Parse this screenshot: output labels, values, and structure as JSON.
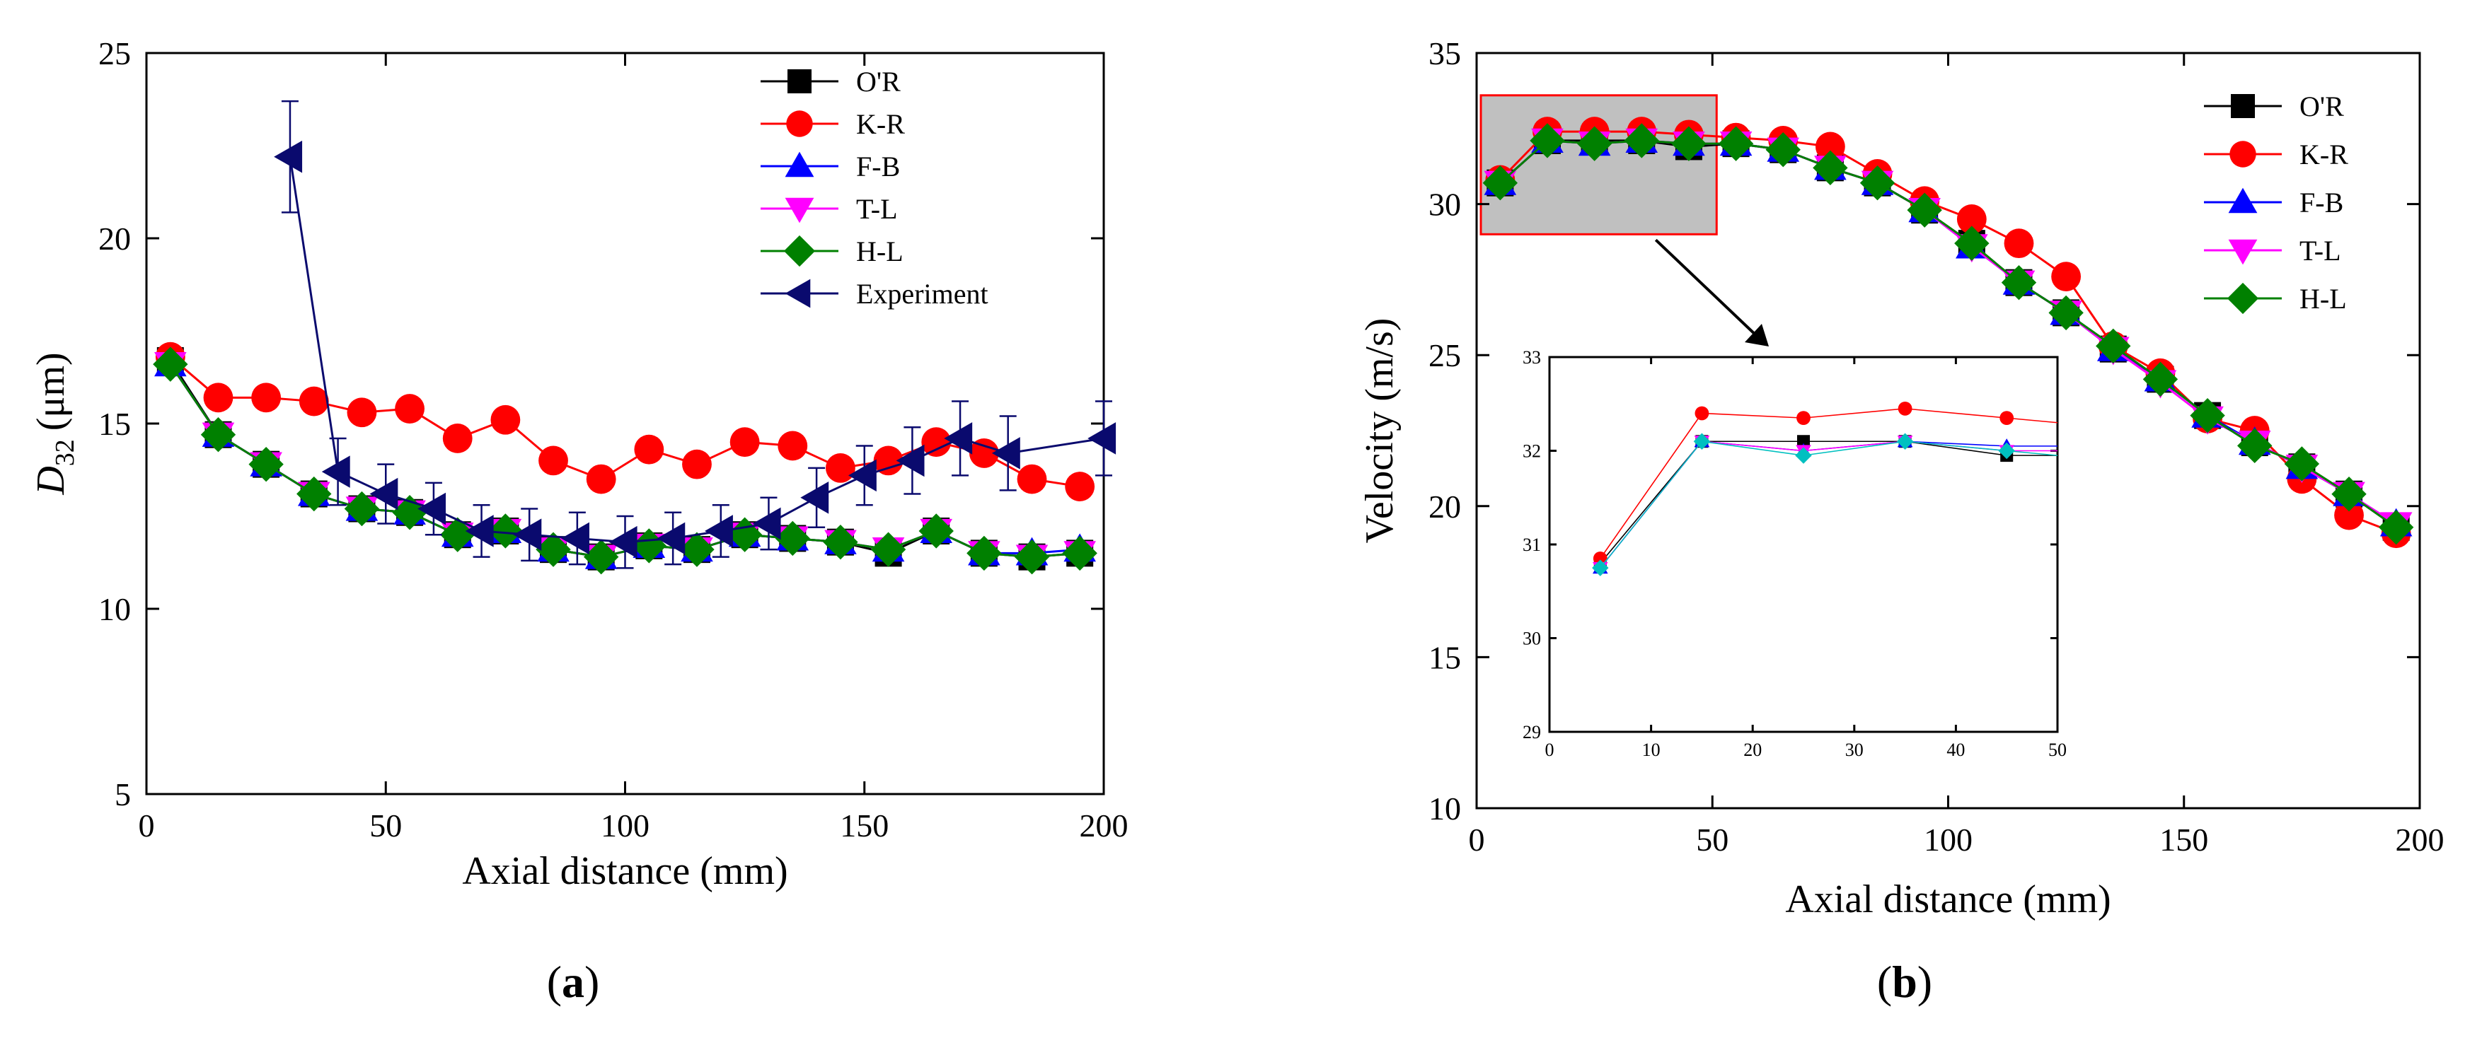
{
  "figure": {
    "panel_a": {
      "open": "(",
      "letter": "a",
      "close": ")"
    },
    "panel_b": {
      "open": "(",
      "letter": "b",
      "close": ")"
    }
  },
  "chart_data": [
    {
      "id": "a",
      "type": "line",
      "title": "",
      "xlabel": "Axial distance (mm)",
      "ylabel_main": "D",
      "ylabel_sub": "32",
      "ylabel_unit": "(μm)",
      "xlim": [
        0,
        200
      ],
      "ylim": [
        5,
        25
      ],
      "xticks": [
        0,
        50,
        100,
        150,
        200
      ],
      "yticks": [
        5,
        10,
        15,
        20,
        25
      ],
      "grid": false,
      "legend_position": "top-right",
      "series": [
        {
          "name": "O'R",
          "color": "#000000",
          "marker": "square",
          "x": [
            5,
            15,
            25,
            35,
            45,
            55,
            65,
            75,
            85,
            95,
            105,
            115,
            125,
            135,
            145,
            155,
            165,
            175,
            185,
            195
          ],
          "y": [
            16.7,
            14.7,
            13.9,
            13.1,
            12.7,
            12.6,
            12.0,
            12.1,
            11.6,
            11.4,
            11.7,
            11.6,
            12.0,
            11.9,
            11.8,
            11.5,
            12.1,
            11.5,
            11.4,
            11.5
          ]
        },
        {
          "name": "K-R",
          "color": "#ff0000",
          "marker": "circle",
          "x": [
            5,
            15,
            25,
            35,
            45,
            55,
            65,
            75,
            85,
            95,
            105,
            115,
            125,
            135,
            145,
            155,
            165,
            175,
            185,
            195
          ],
          "y": [
            16.8,
            15.7,
            15.7,
            15.6,
            15.3,
            15.4,
            14.6,
            15.1,
            14.0,
            13.5,
            14.3,
            13.9,
            14.5,
            14.4,
            13.8,
            14.0,
            14.5,
            14.2,
            13.5,
            13.3
          ]
        },
        {
          "name": "F-B",
          "color": "#0000ff",
          "marker": "triangle-up",
          "x": [
            5,
            15,
            25,
            35,
            45,
            55,
            65,
            75,
            85,
            95,
            105,
            115,
            125,
            135,
            145,
            155,
            165,
            175,
            185,
            195
          ],
          "y": [
            16.6,
            14.7,
            13.9,
            13.1,
            12.7,
            12.6,
            12.0,
            12.1,
            11.6,
            11.4,
            11.7,
            11.6,
            12.0,
            11.9,
            11.8,
            11.6,
            12.1,
            11.5,
            11.5,
            11.6
          ]
        },
        {
          "name": "T-L",
          "color": "#ff00ff",
          "marker": "triangle-down",
          "x": [
            5,
            15,
            25,
            35,
            45,
            55,
            65,
            75,
            85,
            95,
            105,
            115,
            125,
            135,
            145,
            155,
            165,
            175,
            185,
            195
          ],
          "y": [
            16.6,
            14.7,
            13.9,
            13.1,
            12.7,
            12.6,
            12.0,
            12.1,
            11.6,
            11.4,
            11.7,
            11.6,
            12.0,
            11.9,
            11.8,
            11.6,
            12.1,
            11.5,
            11.4,
            11.5
          ]
        },
        {
          "name": "H-L",
          "color": "#008000",
          "marker": "diamond",
          "x": [
            5,
            15,
            25,
            35,
            45,
            55,
            65,
            75,
            85,
            95,
            105,
            115,
            125,
            135,
            145,
            155,
            165,
            175,
            185,
            195
          ],
          "y": [
            16.6,
            14.7,
            13.9,
            13.1,
            12.7,
            12.6,
            12.0,
            12.1,
            11.6,
            11.4,
            11.7,
            11.6,
            12.0,
            11.9,
            11.8,
            11.6,
            12.1,
            11.5,
            11.4,
            11.5
          ]
        },
        {
          "name": "Experiment",
          "color": "#0a0a6e",
          "marker": "triangle-left",
          "x": [
            30,
            40,
            50,
            60,
            70,
            80,
            90,
            100,
            110,
            120,
            130,
            140,
            150,
            160,
            170,
            180,
            200
          ],
          "y": [
            22.2,
            13.7,
            13.1,
            12.7,
            12.1,
            12.0,
            11.9,
            11.8,
            11.9,
            12.1,
            12.3,
            13.0,
            13.6,
            14.0,
            14.6,
            14.2,
            14.6
          ],
          "yerr": [
            1.5,
            0.9,
            0.8,
            0.7,
            0.7,
            0.7,
            0.7,
            0.7,
            0.7,
            0.7,
            0.7,
            0.8,
            0.8,
            0.9,
            1.0,
            1.0,
            1.0
          ]
        }
      ]
    },
    {
      "id": "b",
      "type": "line",
      "title": "",
      "xlabel": "Axial distance (mm)",
      "ylabel": "Velocity (m/s)",
      "xlim": [
        0,
        200
      ],
      "ylim": [
        10,
        35
      ],
      "xticks": [
        0,
        50,
        100,
        150,
        200
      ],
      "yticks": [
        10,
        15,
        20,
        25,
        30,
        35
      ],
      "grid": false,
      "legend_position": "top-right",
      "highlight_region": {
        "x": [
          0,
          50
        ],
        "y": [
          29,
          33.6
        ],
        "fill": "#c0c0c0",
        "stroke": "#ff0000"
      },
      "series": [
        {
          "name": "O'R",
          "color": "#000000",
          "marker": "square",
          "x": [
            5,
            15,
            25,
            35,
            45,
            55,
            65,
            75,
            85,
            95,
            105,
            115,
            125,
            135,
            145,
            155,
            165,
            175,
            185,
            195
          ],
          "y": [
            30.7,
            32.1,
            32.1,
            32.1,
            31.9,
            32.0,
            31.8,
            31.2,
            30.7,
            29.8,
            28.7,
            27.4,
            26.4,
            25.2,
            24.2,
            23.0,
            22.1,
            21.3,
            20.4,
            19.3
          ]
        },
        {
          "name": "K-R",
          "color": "#ff0000",
          "marker": "circle",
          "x": [
            5,
            15,
            25,
            35,
            45,
            55,
            65,
            75,
            85,
            95,
            105,
            115,
            125,
            135,
            145,
            155,
            165,
            175,
            185,
            195
          ],
          "y": [
            30.8,
            32.4,
            32.4,
            32.4,
            32.3,
            32.2,
            32.1,
            31.9,
            31.0,
            30.1,
            29.5,
            28.7,
            27.6,
            25.3,
            24.4,
            22.9,
            22.5,
            20.9,
            19.7,
            19.1
          ]
        },
        {
          "name": "F-B",
          "color": "#0000ff",
          "marker": "triangle-up",
          "x": [
            5,
            15,
            25,
            35,
            45,
            55,
            65,
            75,
            85,
            95,
            105,
            115,
            125,
            135,
            145,
            155,
            165,
            175,
            185,
            195
          ],
          "y": [
            30.7,
            32.1,
            32.0,
            32.1,
            32.0,
            32.0,
            31.8,
            31.2,
            30.7,
            29.8,
            28.6,
            27.4,
            26.4,
            25.2,
            24.2,
            23.0,
            22.1,
            21.3,
            20.4,
            19.4
          ]
        },
        {
          "name": "T-L",
          "color": "#ff00ff",
          "marker": "triangle-down",
          "x": [
            5,
            15,
            25,
            35,
            45,
            55,
            65,
            75,
            85,
            95,
            105,
            115,
            125,
            135,
            145,
            155,
            165,
            175,
            185,
            195
          ],
          "y": [
            30.7,
            32.1,
            32.0,
            32.1,
            32.0,
            32.0,
            31.8,
            31.2,
            30.7,
            29.8,
            28.6,
            27.4,
            26.4,
            25.2,
            24.1,
            22.9,
            22.1,
            21.3,
            20.4,
            19.4
          ]
        },
        {
          "name": "H-L",
          "color": "#008000",
          "marker": "diamond",
          "x": [
            5,
            15,
            25,
            35,
            45,
            55,
            65,
            75,
            85,
            95,
            105,
            115,
            125,
            135,
            145,
            155,
            165,
            175,
            185,
            195
          ],
          "y": [
            30.7,
            32.1,
            32.0,
            32.1,
            32.0,
            32.0,
            31.8,
            31.2,
            30.7,
            29.8,
            28.7,
            27.4,
            26.4,
            25.3,
            24.2,
            23.0,
            22.0,
            21.4,
            20.4,
            19.3
          ]
        }
      ],
      "inset": {
        "xlim": [
          0,
          50
        ],
        "ylim": [
          29,
          33
        ],
        "xticks": [
          0,
          10,
          20,
          30,
          40,
          50
        ],
        "yticks": [
          29,
          30,
          31,
          32,
          33
        ],
        "series": [
          {
            "name": "O'R",
            "color": "#000000",
            "marker": "square",
            "x": [
              5,
              15,
              25,
              35,
              45,
              50
            ],
            "y": [
              30.8,
              32.1,
              32.1,
              32.1,
              31.95,
              31.95
            ]
          },
          {
            "name": "K-R",
            "color": "#ff0000",
            "marker": "circle",
            "x": [
              5,
              15,
              25,
              35,
              45,
              50
            ],
            "y": [
              30.85,
              32.4,
              32.35,
              32.45,
              32.35,
              32.3
            ]
          },
          {
            "name": "F-B",
            "color": "#0000ff",
            "marker": "triangle-up",
            "x": [
              5,
              15,
              25,
              35,
              45,
              50
            ],
            "y": [
              30.75,
              32.1,
              32.0,
              32.1,
              32.05,
              32.05
            ]
          },
          {
            "name": "T-L",
            "color": "#ff00ff",
            "marker": "triangle-down",
            "x": [
              5,
              15,
              25,
              35,
              45,
              50
            ],
            "y": [
              30.75,
              32.1,
              32.0,
              32.1,
              32.0,
              32.0
            ]
          },
          {
            "name": "H-L",
            "color": "#00c0c0",
            "marker": "diamond",
            "x": [
              5,
              15,
              25,
              35,
              45,
              50
            ],
            "y": [
              30.75,
              32.1,
              31.95,
              32.1,
              32.0,
              31.95
            ]
          }
        ]
      }
    }
  ]
}
